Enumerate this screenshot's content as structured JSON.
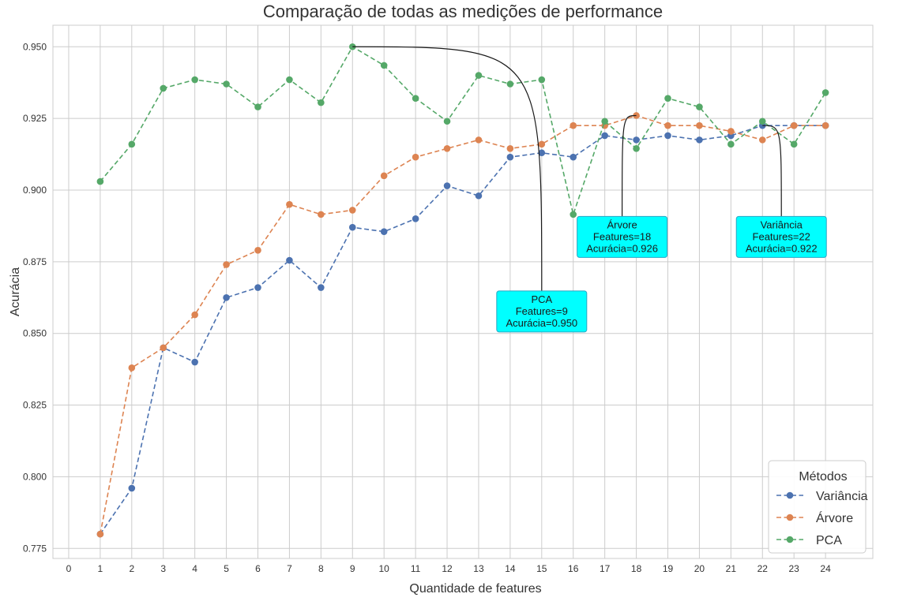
{
  "chart_data": {
    "type": "line",
    "title": "Comparação de todas as medições de performance",
    "xlabel": "Quantidade de features",
    "ylabel": "Acurácia",
    "xlim": [
      -0.5,
      25.5
    ],
    "ylim": [
      0.7715,
      0.9575
    ],
    "x_ticks": [
      "0",
      "1",
      "2",
      "3",
      "4",
      "5",
      "6",
      "7",
      "8",
      "9",
      "10",
      "11",
      "12",
      "13",
      "14",
      "15",
      "16",
      "17",
      "18",
      "19",
      "20",
      "21",
      "22",
      "23",
      "24"
    ],
    "y_ticks": [
      "0.775",
      "0.800",
      "0.825",
      "0.850",
      "0.875",
      "0.900",
      "0.925",
      "0.950"
    ],
    "grid": true,
    "legend": {
      "title": "Métodos",
      "placement": "lower-right"
    },
    "x": [
      1,
      2,
      3,
      4,
      5,
      6,
      7,
      8,
      9,
      10,
      11,
      12,
      13,
      14,
      15,
      16,
      17,
      18,
      19,
      20,
      21,
      22,
      23,
      24
    ],
    "series": [
      {
        "name": "Variância",
        "color": "#4c72b0",
        "values": [
          0.78,
          0.796,
          0.845,
          0.84,
          0.8625,
          0.866,
          0.8755,
          0.866,
          0.887,
          0.8855,
          0.89,
          0.9015,
          0.898,
          0.9115,
          0.913,
          0.9115,
          0.919,
          0.9175,
          0.919,
          0.9175,
          0.919,
          0.9225,
          0.9225,
          0.9225
        ]
      },
      {
        "name": "Árvore",
        "color": "#dd8452",
        "values": [
          0.78,
          0.838,
          0.845,
          0.8565,
          0.874,
          0.879,
          0.895,
          0.8915,
          0.893,
          0.905,
          0.9115,
          0.9145,
          0.9175,
          0.9145,
          0.916,
          0.9225,
          0.9225,
          0.926,
          0.9225,
          0.9225,
          0.9205,
          0.9175,
          0.9225,
          0.9225
        ]
      },
      {
        "name": "PCA",
        "color": "#55a868",
        "values": [
          0.903,
          0.916,
          0.9355,
          0.9385,
          0.937,
          0.929,
          0.9385,
          0.9305,
          0.95,
          0.9435,
          0.932,
          0.924,
          0.94,
          0.937,
          0.9385,
          0.8915,
          0.924,
          0.9145,
          0.932,
          0.929,
          0.916,
          0.924,
          0.916,
          0.934
        ]
      }
    ],
    "annotations": [
      {
        "lines": [
          "PCA",
          "Features=9",
          "Acurácia=0.950"
        ],
        "point": [
          9,
          0.95
        ],
        "box_at": [
          15,
          0.8615
        ],
        "color": "#00ffff"
      },
      {
        "lines": [
          "Árvore",
          "Features=18",
          "Acurácia=0.926"
        ],
        "point": [
          18,
          0.926
        ],
        "box_at": [
          17.55,
          0.8875
        ],
        "color": "#00ffff"
      },
      {
        "lines": [
          "Variância",
          "Features=22",
          "Acurácia=0.922"
        ],
        "point": [
          22,
          0.9225
        ],
        "box_at": [
          22.6,
          0.8875
        ],
        "color": "#00ffff"
      }
    ]
  }
}
